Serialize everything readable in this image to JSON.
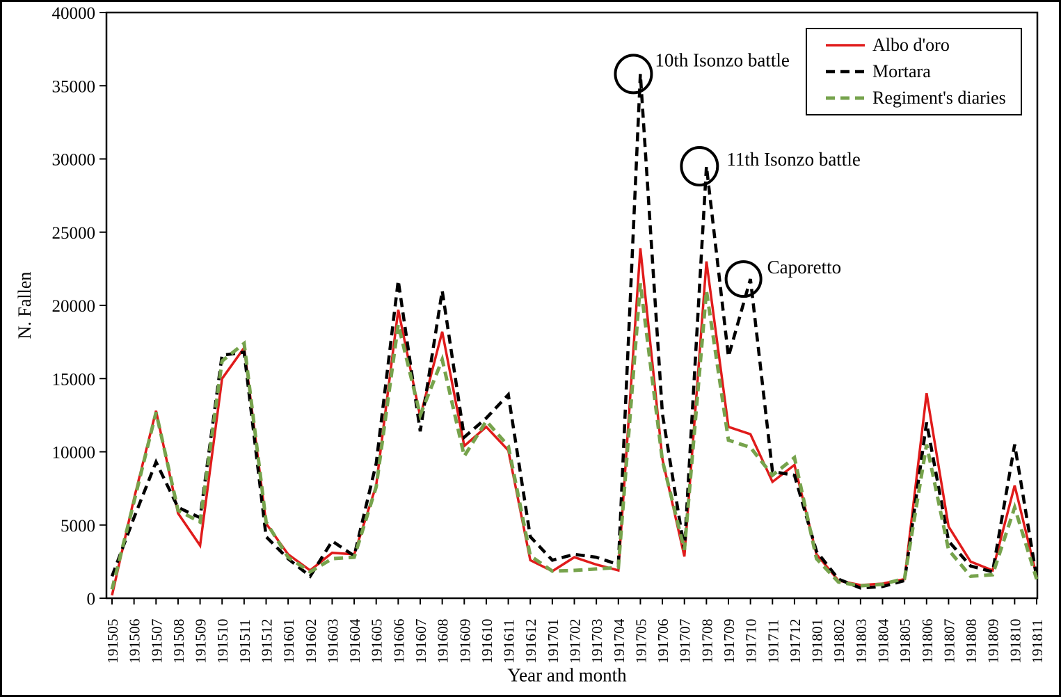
{
  "chart_data": {
    "type": "line",
    "title": "",
    "xlabel": "Year and month",
    "ylabel": "N. Fallen",
    "ylim": [
      0,
      40000
    ],
    "y_ticks": [
      0,
      5000,
      10000,
      15000,
      20000,
      25000,
      30000,
      35000,
      40000
    ],
    "grid": false,
    "legend_position": "top-right",
    "categories": [
      "191505",
      "191506",
      "191507",
      "191508",
      "191509",
      "191510",
      "191511",
      "191512",
      "191601",
      "191602",
      "191603",
      "191604",
      "191605",
      "191606",
      "191607",
      "191608",
      "191609",
      "191610",
      "191611",
      "191612",
      "191701",
      "191702",
      "191703",
      "191704",
      "191705",
      "191706",
      "191707",
      "191708",
      "191709",
      "191710",
      "191711",
      "191712",
      "191801",
      "191802",
      "191803",
      "191804",
      "191805",
      "191806",
      "191807",
      "191808",
      "191809",
      "191810",
      "191811"
    ],
    "series": [
      {
        "name": "Albo d'oro",
        "color": "#e01b1b",
        "style": "solid",
        "dash": "",
        "width": 3.5,
        "values": [
          200,
          6800,
          12800,
          5800,
          3600,
          15000,
          17100,
          5100,
          3000,
          1900,
          3100,
          3000,
          7700,
          19700,
          12400,
          18200,
          10400,
          11700,
          10100,
          2600,
          1850,
          2800,
          2300,
          1900,
          23900,
          9500,
          2850,
          23000,
          11700,
          11200,
          7950,
          9100,
          3000,
          1200,
          900,
          1000,
          1300,
          14000,
          4900,
          2500,
          1900,
          7700,
          1500
        ]
      },
      {
        "name": "Mortara",
        "color": "#000000",
        "style": "dashed",
        "dash": "13 8",
        "width": 4.5,
        "values": [
          1500,
          5500,
          9300,
          6200,
          5500,
          16600,
          16800,
          4200,
          2700,
          1500,
          3900,
          2900,
          9200,
          21700,
          11400,
          21000,
          11000,
          12300,
          13900,
          4200,
          2600,
          3000,
          2800,
          2300,
          35800,
          12600,
          3300,
          29500,
          16500,
          21800,
          8650,
          8400,
          3200,
          1300,
          700,
          800,
          1200,
          12000,
          3900,
          2200,
          1800,
          10500,
          1400
        ]
      },
      {
        "name": "Regiment's diaries",
        "color": "#76a34c",
        "style": "dashed",
        "dash": "13 8",
        "width": 5,
        "values": [
          600,
          6600,
          12700,
          6000,
          5200,
          16200,
          17400,
          5200,
          2800,
          1800,
          2700,
          2800,
          7600,
          18700,
          12500,
          16300,
          9700,
          12100,
          10400,
          2900,
          1850,
          1900,
          2000,
          2100,
          21500,
          9400,
          3300,
          21000,
          10800,
          10300,
          8400,
          9600,
          2700,
          1100,
          850,
          950,
          1350,
          10500,
          3300,
          1500,
          1600,
          6200,
          1300
        ]
      }
    ],
    "annotations": [
      {
        "text": "10th Isonzo battle",
        "category": "191705",
        "value": 35800,
        "circle_rx": 26,
        "circle_ry": 27,
        "circle_dx": -10,
        "text_dx": 31,
        "text_dy": -11
      },
      {
        "text": "11th Isonzo battle",
        "category": "191708",
        "value": 29500,
        "circle_rx": 26,
        "circle_ry": 27,
        "circle_dx": -10,
        "text_dx": 39,
        "text_dy": -1
      },
      {
        "text": "Caporetto",
        "category": "191710",
        "value": 21800,
        "circle_rx": 25,
        "circle_ry": 25,
        "circle_dx": -10,
        "text_dx": 34,
        "text_dy": -8
      }
    ]
  }
}
